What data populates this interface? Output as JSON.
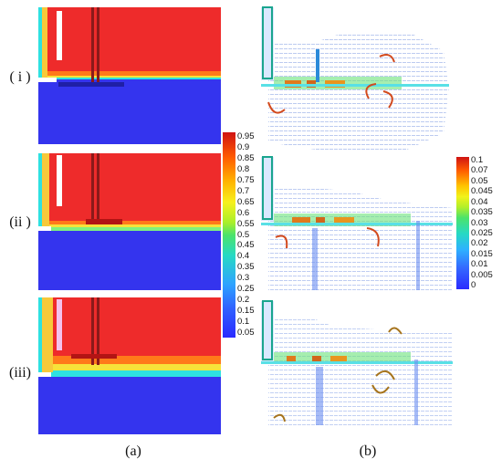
{
  "rows": [
    {
      "label": "( i )"
    },
    {
      "label": "(ii )"
    },
    {
      "label": "(iii)"
    }
  ],
  "captions": {
    "a": "(a)",
    "b": "(b)"
  },
  "colorbar_a": {
    "ticks": [
      "0.95",
      "0.9",
      "0.85",
      "0.8",
      "0.75",
      "0.7",
      "0.65",
      "0.6",
      "0.55",
      "0.5",
      "0.45",
      "0.4",
      "0.35",
      "0.3",
      "0.25",
      "0.2",
      "0.15",
      "0.1",
      "0.05"
    ]
  },
  "colorbar_b": {
    "ticks": [
      "0.1",
      "0.07",
      "0.05",
      "0.045",
      "0.04",
      "0.035",
      "0.03",
      "0.025",
      "0.02",
      "0.015",
      "0.01",
      "0.005",
      "0"
    ]
  },
  "colors": {
    "phase_top": "#ee2b2b",
    "phase_bottom": "#3434ee",
    "vortex_arrow": "#d24a1e"
  }
}
